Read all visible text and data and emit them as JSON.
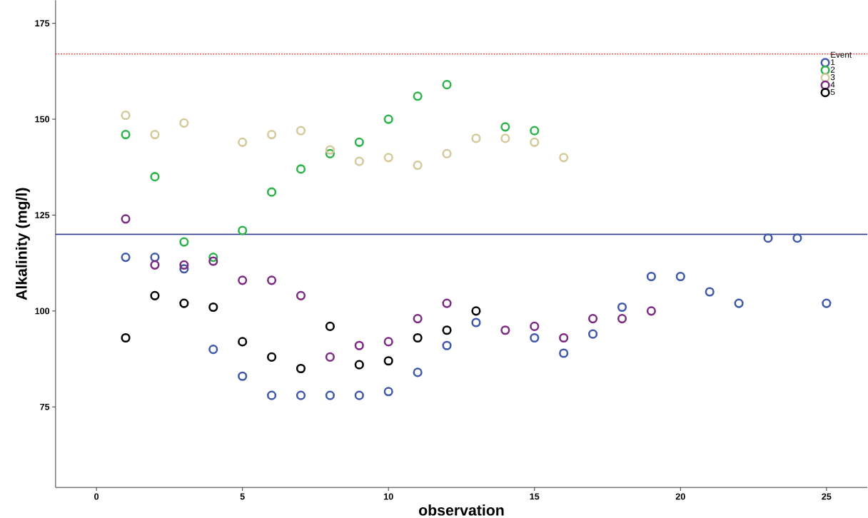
{
  "chart_data": {
    "type": "scatter",
    "xlabel": "observation",
    "ylabel": "Alkalinity (mg/l)",
    "legend_title": "Event",
    "legend": "top right",
    "grid": false,
    "marker": "circle",
    "xlim": [
      -1.4,
      26.4
    ],
    "xticks": [
      0,
      5,
      10,
      15,
      20,
      25
    ],
    "ylim": [
      54,
      181
    ],
    "yticks": [
      75,
      100,
      125,
      150,
      175
    ],
    "ref_lines": [
      {
        "axis": "y",
        "value": 167,
        "color": "#e8322f",
        "line_style": "dotted"
      },
      {
        "axis": "y",
        "value": 120,
        "color": "#2e3a8c",
        "line_style": "solid"
      }
    ],
    "series": [
      {
        "name": "1",
        "color": "#3f58a8",
        "x": [
          1,
          2,
          3,
          4,
          5,
          6,
          7,
          8,
          9,
          10,
          11,
          12,
          13,
          15,
          16,
          17,
          18,
          19,
          20,
          21,
          22,
          23,
          24,
          25
        ],
        "values": [
          114,
          114,
          111,
          90,
          83,
          78,
          78,
          78,
          78,
          79,
          84,
          91,
          97,
          93,
          89,
          94,
          101,
          109,
          109,
          105,
          102,
          119,
          119,
          102
        ]
      },
      {
        "name": "2",
        "color": "#2db34a",
        "x": [
          1,
          2,
          3,
          4,
          5,
          6,
          7,
          8,
          9,
          10,
          11,
          12,
          13,
          14,
          15
        ],
        "values": [
          146,
          135,
          118,
          114,
          121,
          131,
          137,
          141,
          144,
          150,
          156,
          159,
          null,
          148,
          147
        ]
      },
      {
        "name": "3",
        "color": "#d4c99a",
        "x": [
          1,
          2,
          3,
          5,
          6,
          7,
          8,
          9,
          10,
          11,
          12,
          13,
          14,
          15,
          16
        ],
        "values": [
          151,
          146,
          149,
          144,
          146,
          147,
          142,
          139,
          140,
          138,
          141,
          145,
          145,
          144,
          140
        ]
      },
      {
        "name": "4",
        "color": "#7b2a82",
        "x": [
          1,
          2,
          3,
          4,
          5,
          6,
          7,
          8,
          9,
          10,
          11,
          12,
          13,
          14,
          15,
          16,
          17,
          18,
          19
        ],
        "values": [
          124,
          112,
          112,
          113,
          108,
          108,
          104,
          88,
          91,
          92,
          98,
          102,
          null,
          95,
          96,
          93,
          98,
          98,
          100
        ]
      },
      {
        "name": "5",
        "color": "#000000",
        "x": [
          1,
          2,
          3,
          4,
          5,
          6,
          7,
          8,
          9,
          10,
          11,
          12,
          13
        ],
        "values": [
          93,
          104,
          102,
          101,
          92,
          88,
          85,
          96,
          86,
          87,
          93,
          95,
          100
        ]
      }
    ]
  }
}
